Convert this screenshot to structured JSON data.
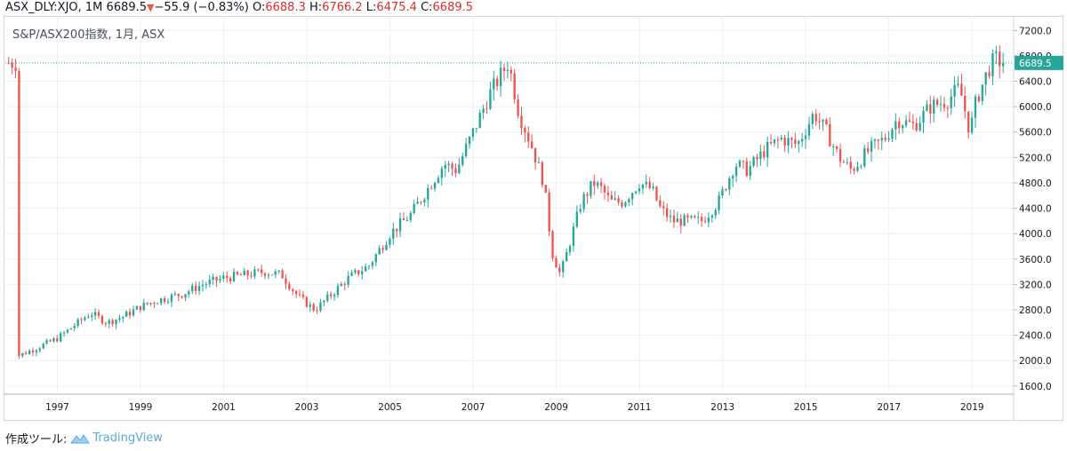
{
  "header": {
    "symbol": "ASX_DLY:XJO, 1M",
    "last": "6689.5",
    "arrow": "▼",
    "change": "−55.9 (−0.83%)",
    "o_label": "O:",
    "o_value": "6688.3",
    "h_label": "H:",
    "h_value": "6766.2",
    "l_label": "L:",
    "l_value": "6475.4",
    "c_label": "C:",
    "c_value": "6689.5"
  },
  "subtitle": "S&P/ASX200指数, 1月, ASX",
  "footer": {
    "prefix": "作成ツール:",
    "brand": "TradingView"
  },
  "colors": {
    "up": "#26a69a",
    "down": "#ef5350",
    "price_badge": "#26a69a",
    "grid": "#e7f1f4",
    "accent": "#5ba9d9"
  },
  "chart_data": {
    "type": "candlestick",
    "interval": "1M",
    "x_range": [
      "1995-10",
      "2019-12"
    ],
    "ylim": [
      1500,
      7400
    ],
    "grid": true,
    "last_price_label": "6689.5",
    "last_price": 6689.5,
    "y_ticks": [
      "1600.0",
      "2000.0",
      "2400.0",
      "2800.0",
      "3200.0",
      "3600.0",
      "4000.0",
      "4400.0",
      "4800.0",
      "5200.0",
      "5600.0",
      "6000.0",
      "6400.0",
      "6800.0",
      "7200.0"
    ],
    "y_tick_values": [
      1600,
      2000,
      2400,
      2800,
      3200,
      3600,
      4000,
      4400,
      4800,
      5200,
      5600,
      6000,
      6400,
      6800,
      7200
    ],
    "x_ticks": [
      "1997",
      "1999",
      "2001",
      "2003",
      "2005",
      "2007",
      "2009",
      "2011",
      "2013",
      "2015",
      "2017",
      "2019"
    ],
    "x_tick_values": [
      1997,
      1999,
      2001,
      2003,
      2005,
      2007,
      2009,
      2011,
      2013,
      2015,
      2017,
      2019
    ],
    "anchors": [
      [
        1996.0,
        2060
      ],
      [
        1996.5,
        2200
      ],
      [
        1997.0,
        2350
      ],
      [
        1997.5,
        2600
      ],
      [
        1997.8,
        2750
      ],
      [
        1998.2,
        2600
      ],
      [
        1998.6,
        2700
      ],
      [
        1999.0,
        2850
      ],
      [
        1999.4,
        2950
      ],
      [
        2000.0,
        3050
      ],
      [
        2000.5,
        3200
      ],
      [
        2001.0,
        3300
      ],
      [
        2001.5,
        3350
      ],
      [
        2002.0,
        3400
      ],
      [
        2002.4,
        3350
      ],
      [
        2002.8,
        3000
      ],
      [
        2003.2,
        2800
      ],
      [
        2003.6,
        3050
      ],
      [
        2004.0,
        3300
      ],
      [
        2004.5,
        3500
      ],
      [
        2005.0,
        4000
      ],
      [
        2005.5,
        4300
      ],
      [
        2006.0,
        4800
      ],
      [
        2006.3,
        5100
      ],
      [
        2006.6,
        5000
      ],
      [
        2007.0,
        5600
      ],
      [
        2007.4,
        6200
      ],
      [
        2007.85,
        6700
      ],
      [
        2008.1,
        5900
      ],
      [
        2008.4,
        5400
      ],
      [
        2008.7,
        4800
      ],
      [
        2008.9,
        3700
      ],
      [
        2009.1,
        3350
      ],
      [
        2009.3,
        3800
      ],
      [
        2009.6,
        4500
      ],
      [
        2009.9,
        4800
      ],
      [
        2010.1,
        4700
      ],
      [
        2010.3,
        4500
      ],
      [
        2010.6,
        4500
      ],
      [
        2011.0,
        4800
      ],
      [
        2011.3,
        4700
      ],
      [
        2011.5,
        4400
      ],
      [
        2011.8,
        4200
      ],
      [
        2012.1,
        4200
      ],
      [
        2012.5,
        4200
      ],
      [
        2012.9,
        4500
      ],
      [
        2013.3,
        5100
      ],
      [
        2013.6,
        5000
      ],
      [
        2014.0,
        5300
      ],
      [
        2014.4,
        5500
      ],
      [
        2014.8,
        5400
      ],
      [
        2015.2,
        5900
      ],
      [
        2015.5,
        5600
      ],
      [
        2015.8,
        5200
      ],
      [
        2016.1,
        5000
      ],
      [
        2016.5,
        5300
      ],
      [
        2016.9,
        5500
      ],
      [
        2017.2,
        5800
      ],
      [
        2017.6,
        5700
      ],
      [
        2018.0,
        6000
      ],
      [
        2018.4,
        6100
      ],
      [
        2018.7,
        6300
      ],
      [
        2018.95,
        5600
      ],
      [
        2019.1,
        6100
      ],
      [
        2019.4,
        6600
      ],
      [
        2019.55,
        6750
      ],
      [
        2019.75,
        6689.5
      ]
    ]
  }
}
